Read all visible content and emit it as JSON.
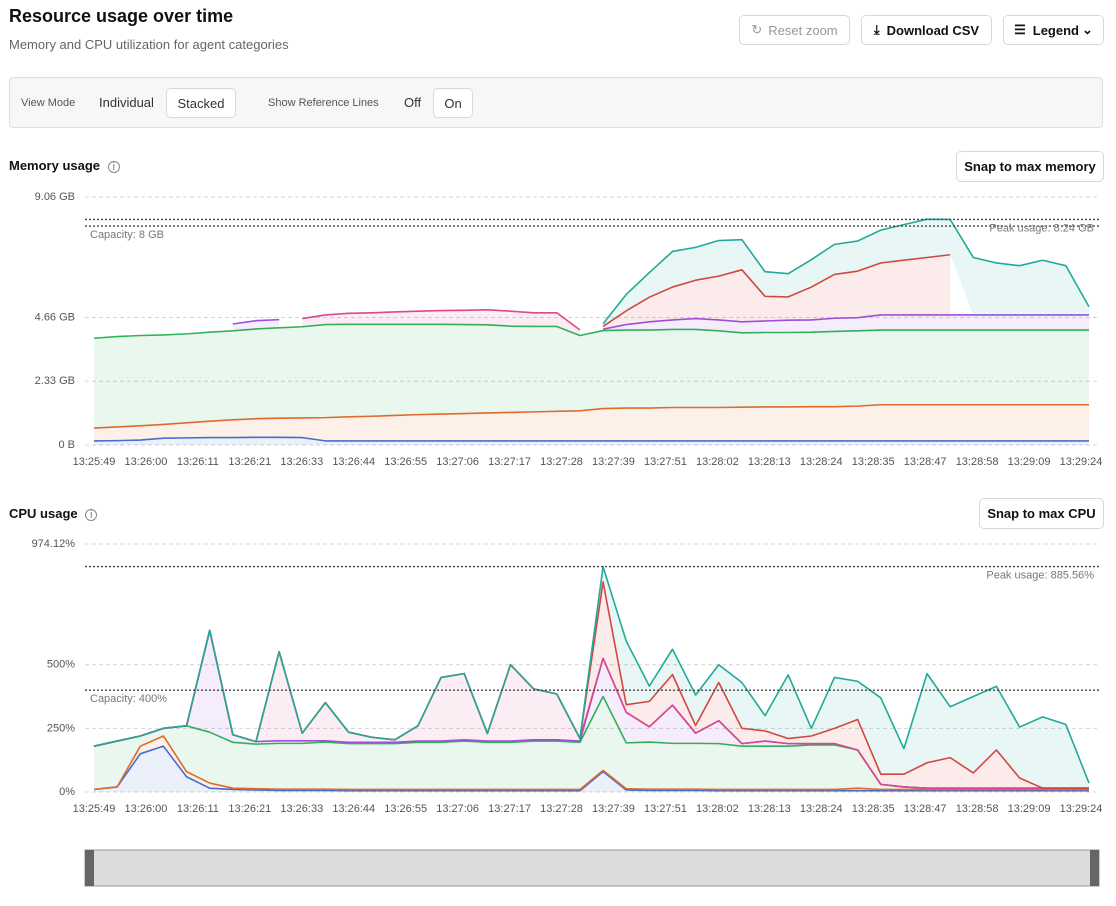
{
  "header": {
    "title": "Resource usage over time",
    "subtitle": "Memory and CPU utilization for agent categories",
    "buttons": [
      "Reset zoom",
      "Download CSV",
      "Legend"
    ]
  },
  "controls": {
    "view_mode_label": "View Mode",
    "view_modes": [
      "Individual",
      "Stacked"
    ],
    "reference_label": "Show Reference Lines",
    "reference_options": [
      "Off",
      "On"
    ]
  },
  "chart_data": [
    {
      "type": "area",
      "stacked": true,
      "title": "Memory usage",
      "action": "Snap to max memory",
      "xtick_labels": [
        "13:25:49",
        "13:26:00",
        "13:26:11",
        "13:26:21",
        "13:26:33",
        "13:26:44",
        "13:26:55",
        "13:27:06",
        "13:27:17",
        "13:27:28",
        "13:27:39",
        "13:27:51",
        "13:28:02",
        "13:28:13",
        "13:28:24",
        "13:28:35",
        "13:28:47",
        "13:28:58",
        "13:29:09",
        "13:29:24"
      ],
      "ylim": [
        0,
        9.06
      ],
      "yticks": [
        {
          "value": 0,
          "label": "0 B"
        },
        {
          "value": 2.33,
          "label": "2.33 GB"
        },
        {
          "value": 4.66,
          "label": "4.66 GB"
        },
        {
          "value": 9.06,
          "label": "9.06 GB"
        }
      ],
      "grid": true,
      "reference_lines": [
        {
          "label": "Capacity: 8 GB",
          "value": 8,
          "position": "left"
        },
        {
          "label": "Peak usage: 8.24 GB",
          "value": 8.24,
          "position": "right"
        }
      ],
      "series": [
        {
          "color": "#3b6fd8",
          "values": [
            0.15,
            0.16,
            0.18,
            0.25,
            0.26,
            0.27,
            0.27,
            0.28,
            0.28,
            0.27,
            0.15,
            0.15,
            0.15,
            0.15,
            0.15,
            0.15,
            0.15,
            0.15,
            0.15,
            0.15,
            0.15,
            0.15,
            0.15,
            0.15,
            0.15,
            0.15,
            0.15,
            0.15,
            0.15,
            0.15,
            0.15,
            0.15,
            0.15,
            0.15,
            0.15,
            0.15,
            0.15,
            0.15,
            0.15,
            0.15,
            0.15,
            0.15,
            0.15,
            0.15
          ]
        },
        {
          "color": "#e8692a",
          "values": [
            0.47,
            0.5,
            0.52,
            0.5,
            0.55,
            0.6,
            0.65,
            0.68,
            0.7,
            0.72,
            0.85,
            0.88,
            0.9,
            0.93,
            0.96,
            0.98,
            1.0,
            1.02,
            1.04,
            1.06,
            1.08,
            1.1,
            1.18,
            1.2,
            1.2,
            1.22,
            1.22,
            1.22,
            1.23,
            1.24,
            1.24,
            1.25,
            1.25,
            1.27,
            1.32,
            1.32,
            1.32,
            1.32,
            1.32,
            1.32,
            1.32,
            1.32,
            1.32,
            1.32
          ]
        },
        {
          "color": "#2fb457",
          "values": [
            3.28,
            3.3,
            3.3,
            3.27,
            3.25,
            3.25,
            3.25,
            3.28,
            3.3,
            3.33,
            3.4,
            3.38,
            3.36,
            3.33,
            3.3,
            3.28,
            3.25,
            3.22,
            3.15,
            3.12,
            3.1,
            2.75,
            2.85,
            2.85,
            2.85,
            2.85,
            2.85,
            2.8,
            2.72,
            2.72,
            2.72,
            2.72,
            2.75,
            2.75,
            2.73,
            2.73,
            2.73,
            2.73,
            2.73,
            2.73,
            2.73,
            2.73,
            2.73,
            2.73
          ]
        },
        {
          "color": "#9b4fe0",
          "values": [
            null,
            null,
            null,
            null,
            null,
            null,
            0.25,
            0.3,
            0.3,
            null,
            null,
            null,
            null,
            null,
            null,
            null,
            null,
            null,
            null,
            null,
            null,
            null,
            0.05,
            0.2,
            0.3,
            0.35,
            0.4,
            0.4,
            0.4,
            0.42,
            0.45,
            0.45,
            0.48,
            0.48,
            0.55,
            0.55,
            0.55,
            0.55,
            0.55,
            0.55,
            0.55,
            0.55,
            0.55,
            0.55
          ]
        },
        {
          "color": "#d94a8c",
          "values": [
            null,
            null,
            null,
            null,
            null,
            null,
            null,
            null,
            null,
            0.3,
            0.35,
            0.4,
            0.42,
            0.45,
            0.48,
            0.5,
            0.52,
            0.55,
            0.55,
            0.5,
            0.5,
            0.2,
            null,
            null,
            null,
            null,
            null,
            null,
            null,
            null,
            null,
            null,
            null,
            null,
            null,
            null,
            null,
            null,
            null,
            null,
            null,
            null,
            null,
            null
          ]
        },
        {
          "color": "#d9443c",
          "values": [
            null,
            null,
            null,
            null,
            null,
            null,
            null,
            null,
            null,
            null,
            null,
            null,
            null,
            null,
            null,
            null,
            null,
            null,
            null,
            null,
            null,
            null,
            0.1,
            0.5,
            0.9,
            1.2,
            1.4,
            1.6,
            1.9,
            0.9,
            0.85,
            1.2,
            1.6,
            1.7,
            1.9,
            2.0,
            2.1,
            2.2,
            null,
            null,
            null,
            null,
            null,
            null
          ]
        },
        {
          "color": "#22a99a",
          "values": [
            null,
            null,
            null,
            null,
            null,
            null,
            null,
            null,
            null,
            null,
            null,
            null,
            null,
            null,
            null,
            null,
            null,
            null,
            null,
            null,
            null,
            null,
            0.1,
            0.6,
            0.9,
            1.3,
            1.2,
            1.3,
            1.1,
            0.9,
            0.85,
            1.0,
            1.1,
            1.1,
            1.2,
            1.3,
            1.4,
            1.29,
            2.1,
            1.9,
            1.8,
            2.0,
            1.8,
            0.3
          ]
        }
      ]
    },
    {
      "type": "area",
      "stacked": true,
      "title": "CPU usage",
      "action": "Snap to max CPU",
      "xtick_labels": [
        "13:25:49",
        "13:26:00",
        "13:26:11",
        "13:26:21",
        "13:26:33",
        "13:26:44",
        "13:26:55",
        "13:27:06",
        "13:27:17",
        "13:27:28",
        "13:27:39",
        "13:27:51",
        "13:28:02",
        "13:28:13",
        "13:28:24",
        "13:28:35",
        "13:28:47",
        "13:28:58",
        "13:29:09",
        "13:29:24"
      ],
      "ylim": [
        0,
        974.12
      ],
      "yticks": [
        {
          "value": 0,
          "label": "0%"
        },
        {
          "value": 250,
          "label": "250%"
        },
        {
          "value": 500,
          "label": "500%"
        },
        {
          "value": 974.12,
          "label": "974.12%"
        }
      ],
      "grid": true,
      "reference_lines": [
        {
          "label": "Capacity: 400%",
          "value": 400,
          "position": "left"
        },
        {
          "label": "Peak usage: 885.56%",
          "value": 885.56,
          "position": "right"
        }
      ],
      "series": [
        {
          "color": "#3b6fd8",
          "values": [
            10,
            20,
            150,
            180,
            60,
            15,
            10,
            8,
            6,
            6,
            6,
            5,
            5,
            5,
            5,
            5,
            5,
            5,
            5,
            5,
            5,
            5,
            80,
            8,
            6,
            6,
            6,
            5,
            5,
            5,
            5,
            5,
            5,
            5,
            5,
            5,
            5,
            5,
            5,
            5,
            5,
            5,
            5,
            5
          ]
        },
        {
          "color": "#e8692a",
          "values": [
            0,
            0,
            30,
            40,
            20,
            20,
            5,
            5,
            5,
            5,
            5,
            5,
            5,
            5,
            5,
            5,
            5,
            5,
            5,
            5,
            5,
            5,
            5,
            5,
            5,
            5,
            5,
            5,
            5,
            5,
            5,
            5,
            5,
            10,
            5,
            5,
            5,
            5,
            5,
            5,
            5,
            5,
            5,
            5
          ]
        },
        {
          "color": "#2fb457",
          "values": [
            170,
            180,
            40,
            30,
            180,
            200,
            180,
            175,
            180,
            180,
            185,
            180,
            180,
            180,
            185,
            185,
            190,
            185,
            185,
            190,
            190,
            185,
            290,
            180,
            185,
            180,
            180,
            180,
            170,
            170,
            170,
            175,
            175,
            150,
            20,
            10,
            5,
            5,
            5,
            5,
            5,
            5,
            5,
            5
          ]
        },
        {
          "color": "#9b4fe0",
          "values": [
            0,
            0,
            0,
            0,
            0,
            400,
            30,
            10,
            10,
            10,
            5,
            5,
            5,
            5,
            5,
            5,
            5,
            5,
            5,
            5,
            5,
            5,
            150,
            120,
            60,
            150,
            40,
            90,
            10,
            20,
            10,
            5,
            5,
            0,
            0,
            0,
            0,
            0,
            0,
            0,
            0,
            0,
            0,
            0
          ]
        },
        {
          "color": "#d94a8c",
          "values": [
            0,
            0,
            0,
            0,
            0,
            0,
            0,
            0,
            350,
            30,
            150,
            40,
            20,
            10,
            60,
            250,
            260,
            30,
            300,
            200,
            180,
            10,
            0,
            0,
            0,
            0,
            0,
            0,
            0,
            0,
            0,
            0,
            0,
            0,
            0,
            0,
            0,
            0,
            0,
            0,
            0,
            0,
            0,
            0
          ]
        },
        {
          "color": "#d9443c",
          "values": [
            0,
            0,
            0,
            0,
            0,
            0,
            0,
            0,
            0,
            0,
            0,
            0,
            0,
            0,
            0,
            0,
            0,
            0,
            0,
            0,
            0,
            0,
            300,
            30,
            100,
            120,
            30,
            150,
            60,
            40,
            20,
            30,
            60,
            120,
            40,
            50,
            100,
            120,
            60,
            150,
            40,
            0,
            0,
            0
          ]
        },
        {
          "color": "#22a99a",
          "values": [
            0,
            0,
            0,
            0,
            0,
            0,
            0,
            0,
            0,
            0,
            0,
            0,
            0,
            0,
            0,
            0,
            0,
            0,
            0,
            0,
            0,
            0,
            60,
            250,
            60,
            100,
            120,
            70,
            180,
            60,
            250,
            30,
            200,
            150,
            300,
            100,
            350,
            200,
            300,
            250,
            200,
            280,
            250,
            20
          ]
        }
      ]
    }
  ]
}
